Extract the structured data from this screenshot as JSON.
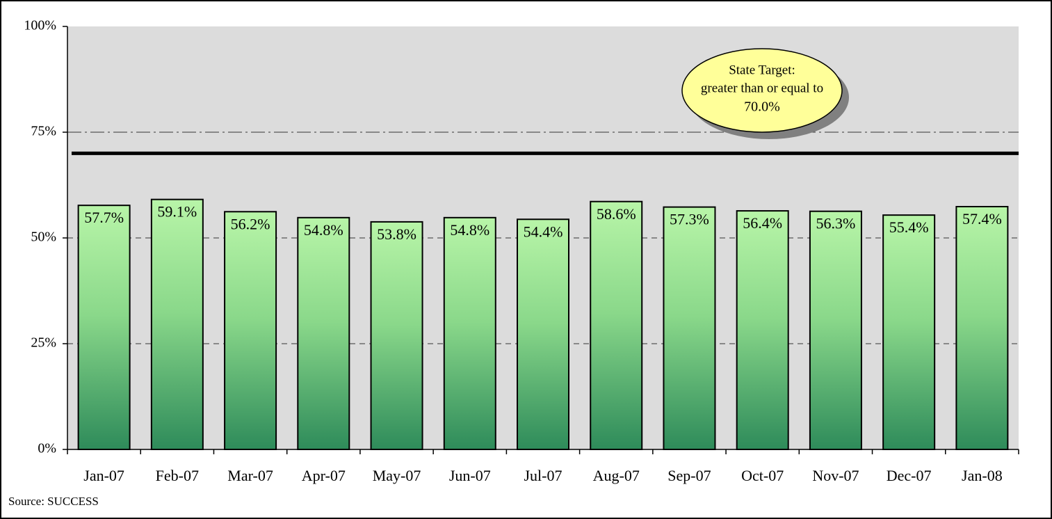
{
  "chart_data": {
    "type": "bar",
    "categories": [
      "Jan-07",
      "Feb-07",
      "Mar-07",
      "Apr-07",
      "May-07",
      "Jun-07",
      "Jul-07",
      "Aug-07",
      "Sep-07",
      "Oct-07",
      "Nov-07",
      "Dec-07",
      "Jan-08"
    ],
    "values": [
      57.7,
      59.1,
      56.2,
      54.8,
      53.8,
      54.8,
      54.4,
      58.6,
      57.3,
      56.4,
      56.3,
      55.4,
      57.4
    ],
    "value_labels": [
      "57.7%",
      "59.1%",
      "56.2%",
      "54.8%",
      "53.8%",
      "54.8%",
      "54.4%",
      "58.6%",
      "57.3%",
      "56.4%",
      "56.3%",
      "55.4%",
      "57.4%"
    ],
    "ylim": [
      0,
      100
    ],
    "yticks": [
      {
        "value": 0,
        "label": "0%"
      },
      {
        "value": 25,
        "label": "25%"
      },
      {
        "value": 50,
        "label": "50%"
      },
      {
        "value": 75,
        "label": "75%"
      },
      {
        "value": 100,
        "label": "100%"
      }
    ],
    "grid": true,
    "target": {
      "value": 70,
      "label": "70.0%"
    },
    "annotation": [
      "State Target:",
      "greater than or equal to"
    ],
    "source": "Source: SUCCESS"
  }
}
